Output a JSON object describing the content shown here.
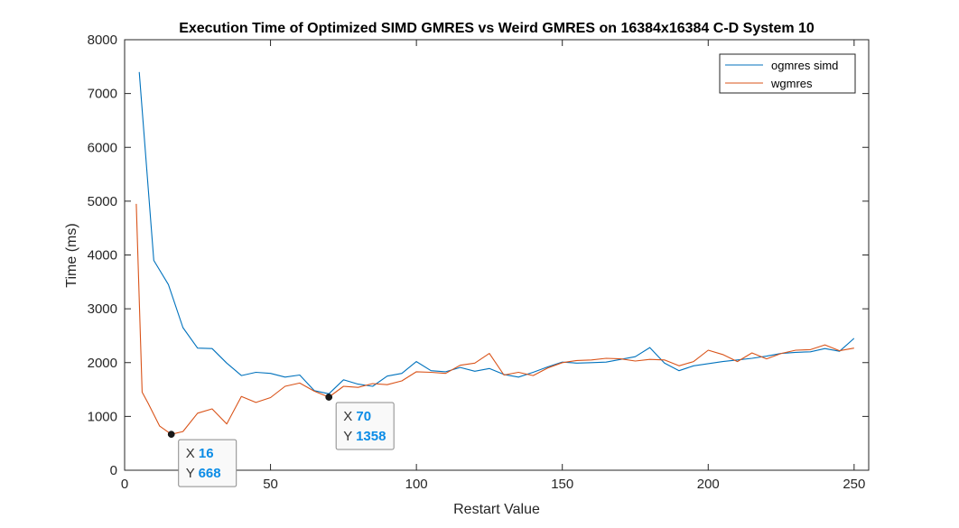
{
  "chart_data": {
    "type": "line",
    "title": "Execution Time of Optimized SIMD GMRES vs Weird GMRES on 16384x16384 C-D System 10",
    "xlabel": "Restart Value",
    "ylabel": "Time (ms)",
    "xlim": [
      0,
      255
    ],
    "ylim": [
      0,
      8000
    ],
    "xticks": [
      0,
      50,
      100,
      150,
      200,
      250
    ],
    "yticks": [
      0,
      1000,
      2000,
      3000,
      4000,
      5000,
      6000,
      7000,
      8000
    ],
    "grid": false,
    "legend_position": "top-right",
    "series": [
      {
        "name": "ogmres simd",
        "color": "#0072BD",
        "x": [
          5,
          10,
          15,
          20,
          25,
          30,
          35,
          40,
          45,
          50,
          55,
          60,
          65,
          70,
          75,
          80,
          85,
          90,
          95,
          100,
          105,
          110,
          115,
          120,
          125,
          130,
          135,
          140,
          145,
          150,
          155,
          160,
          165,
          170,
          175,
          180,
          185,
          190,
          195,
          200,
          205,
          210,
          215,
          220,
          225,
          230,
          235,
          240,
          245,
          250
        ],
        "y": [
          7400,
          3900,
          3450,
          2650,
          2270,
          2260,
          1990,
          1760,
          1820,
          1800,
          1730,
          1770,
          1480,
          1420,
          1680,
          1600,
          1560,
          1750,
          1800,
          2020,
          1850,
          1830,
          1910,
          1840,
          1890,
          1780,
          1730,
          1820,
          1920,
          2010,
          1990,
          2000,
          2010,
          2060,
          2110,
          2280,
          1990,
          1850,
          1940,
          1980,
          2020,
          2050,
          2080,
          2120,
          2170,
          2190,
          2200,
          2260,
          2210,
          2450
        ]
      },
      {
        "name": "wgmres",
        "color": "#D95319",
        "x": [
          4,
          6,
          8,
          12,
          16,
          20,
          25,
          30,
          35,
          40,
          45,
          50,
          55,
          60,
          65,
          70,
          75,
          80,
          85,
          90,
          95,
          100,
          105,
          110,
          115,
          120,
          125,
          130,
          135,
          140,
          145,
          150,
          155,
          160,
          165,
          170,
          175,
          180,
          185,
          190,
          195,
          200,
          205,
          210,
          215,
          220,
          225,
          230,
          235,
          240,
          245,
          250
        ],
        "y": [
          4950,
          1450,
          1250,
          820,
          668,
          720,
          1060,
          1140,
          860,
          1370,
          1260,
          1350,
          1560,
          1620,
          1470,
          1358,
          1560,
          1540,
          1610,
          1590,
          1660,
          1830,
          1820,
          1800,
          1950,
          1990,
          2170,
          1770,
          1820,
          1760,
          1900,
          2000,
          2040,
          2050,
          2080,
          2070,
          2030,
          2060,
          2050,
          1940,
          2020,
          2230,
          2150,
          2020,
          2180,
          2070,
          2170,
          2230,
          2240,
          2330,
          2220,
          2270
        ]
      }
    ],
    "datatips": [
      {
        "series": "wgmres",
        "x_key": "X",
        "y_key": "Y",
        "x": 16,
        "y": 668
      },
      {
        "series": "wgmres",
        "x_key": "X",
        "y_key": "Y",
        "x": 70,
        "y": 1358
      }
    ]
  }
}
